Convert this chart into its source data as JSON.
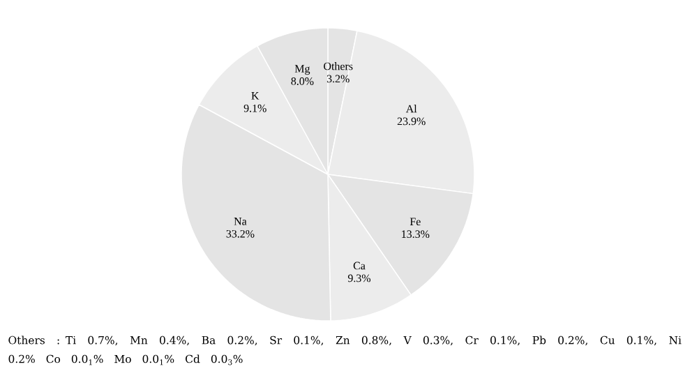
{
  "chart_data": {
    "type": "pie",
    "categories": [
      "Others",
      "Al",
      "Fe",
      "Ca",
      "Na",
      "K",
      "Mg"
    ],
    "values": [
      3.2,
      23.9,
      13.3,
      9.3,
      33.2,
      9.1,
      8.0
    ],
    "colors": [
      "#e4e4e4",
      "#ececec",
      "#e4e4e4",
      "#ececec",
      "#e4e4e4",
      "#ececec",
      "#e4e4e4"
    ],
    "value_labels": [
      "3.2%",
      "23.9%",
      "13.3%",
      "9.3%",
      "33.2%",
      "9.1%",
      "8.0%"
    ],
    "annotations": [
      "Others : Ti 0.7%, Mn 0.4%, Ba 0.2%, Sr 0.1%, Zn 0.8%, V 0.3%, Cr 0.1%, Pb 0.2%, Cu 0.1%, Ni 0.2% Co 0.0$_{1}$% Mo 0.0$_{1}$% Cd 0.0$_{3}$%"
    ]
  }
}
